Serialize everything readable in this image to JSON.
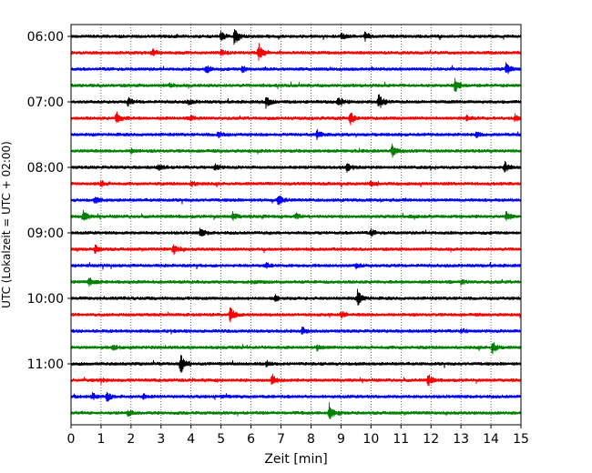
{
  "chart_data": {
    "type": "line",
    "subtype": "helicorder",
    "xlabel": "Zeit  [min]",
    "ylabel": "UTC (Lokalzeit = UTC + 02:00)",
    "xlim": [
      0,
      15
    ],
    "x_ticks": [
      "0",
      "1",
      "2",
      "3",
      "4",
      "5",
      "6",
      "7",
      "8",
      "9",
      "10",
      "11",
      "12",
      "13",
      "14",
      "15"
    ],
    "y_tick_labels": [
      "06:00",
      "07:00",
      "08:00",
      "09:00",
      "10:00",
      "11:00"
    ],
    "grid": "vertical-dotted",
    "trace_colors": [
      "#000000",
      "#ff0000",
      "#0000ff",
      "#008000"
    ],
    "rows": [
      {
        "time": "06:00",
        "color": "#000000",
        "events": [
          {
            "t": 5.0,
            "a": 0.5
          },
          {
            "t": 5.45,
            "a": 0.9
          },
          {
            "t": 9.0,
            "a": 0.35
          },
          {
            "t": 9.8,
            "a": 0.4
          }
        ]
      },
      {
        "time": "06:15",
        "color": "#ff0000",
        "events": [
          {
            "t": 2.7,
            "a": 0.35
          },
          {
            "t": 6.25,
            "a": 1.0
          },
          {
            "t": 5.0,
            "a": 0.3
          }
        ]
      },
      {
        "time": "06:30",
        "color": "#0000ff",
        "events": [
          {
            "t": 4.5,
            "a": 0.45
          },
          {
            "t": 5.7,
            "a": 0.3
          },
          {
            "t": 14.5,
            "a": 0.6
          }
        ]
      },
      {
        "time": "06:45",
        "color": "#008000",
        "events": [
          {
            "t": 12.8,
            "a": 0.7
          },
          {
            "t": 3.3,
            "a": 0.2
          }
        ]
      },
      {
        "time": "07:00",
        "color": "#000000",
        "events": [
          {
            "t": 1.9,
            "a": 0.4
          },
          {
            "t": 6.5,
            "a": 0.6
          },
          {
            "t": 8.9,
            "a": 0.6
          },
          {
            "t": 10.25,
            "a": 0.8
          },
          {
            "t": 3.9,
            "a": 0.3
          }
        ]
      },
      {
        "time": "07:15",
        "color": "#ff0000",
        "events": [
          {
            "t": 1.5,
            "a": 0.75
          },
          {
            "t": 9.3,
            "a": 0.65
          },
          {
            "t": 4.0,
            "a": 0.3
          },
          {
            "t": 13.2,
            "a": 0.3
          },
          {
            "t": 14.8,
            "a": 0.35
          }
        ]
      },
      {
        "time": "07:30",
        "color": "#0000ff",
        "events": [
          {
            "t": 4.9,
            "a": 0.3
          },
          {
            "t": 8.2,
            "a": 0.45
          },
          {
            "t": 13.5,
            "a": 0.3
          }
        ]
      },
      {
        "time": "07:45",
        "color": "#008000",
        "events": [
          {
            "t": 10.7,
            "a": 0.7
          },
          {
            "t": 2.0,
            "a": 0.2
          }
        ]
      },
      {
        "time": "08:00",
        "color": "#000000",
        "events": [
          {
            "t": 2.9,
            "a": 0.3
          },
          {
            "t": 4.8,
            "a": 0.35
          },
          {
            "t": 9.2,
            "a": 0.45
          },
          {
            "t": 14.45,
            "a": 0.55
          }
        ]
      },
      {
        "time": "08:15",
        "color": "#ff0000",
        "events": [
          {
            "t": 1.0,
            "a": 0.3
          },
          {
            "t": 4.0,
            "a": 0.3
          },
          {
            "t": 10.0,
            "a": 0.25
          }
        ]
      },
      {
        "time": "08:30",
        "color": "#0000ff",
        "events": [
          {
            "t": 6.9,
            "a": 0.5
          },
          {
            "t": 0.8,
            "a": 0.3
          }
        ]
      },
      {
        "time": "08:45",
        "color": "#008000",
        "events": [
          {
            "t": 0.4,
            "a": 0.55
          },
          {
            "t": 5.4,
            "a": 0.45
          },
          {
            "t": 14.5,
            "a": 0.5
          },
          {
            "t": 7.5,
            "a": 0.25
          }
        ]
      },
      {
        "time": "09:00",
        "color": "#000000",
        "events": [
          {
            "t": 4.3,
            "a": 0.45
          },
          {
            "t": 10.0,
            "a": 0.3
          }
        ]
      },
      {
        "time": "09:15",
        "color": "#ff0000",
        "events": [
          {
            "t": 0.8,
            "a": 0.4
          },
          {
            "t": 3.4,
            "a": 0.55
          }
        ]
      },
      {
        "time": "09:30",
        "color": "#0000ff",
        "events": [
          {
            "t": 6.5,
            "a": 0.25
          },
          {
            "t": 9.5,
            "a": 0.25
          }
        ]
      },
      {
        "time": "09:45",
        "color": "#008000",
        "events": [
          {
            "t": 0.6,
            "a": 0.5
          },
          {
            "t": 6.0,
            "a": 0.2
          },
          {
            "t": 13.0,
            "a": 0.25
          }
        ]
      },
      {
        "time": "10:00",
        "color": "#000000",
        "events": [
          {
            "t": 9.55,
            "a": 0.95
          },
          {
            "t": 6.8,
            "a": 0.3
          }
        ]
      },
      {
        "time": "10:15",
        "color": "#ff0000",
        "events": [
          {
            "t": 5.3,
            "a": 0.75
          },
          {
            "t": 9.0,
            "a": 0.3
          }
        ]
      },
      {
        "time": "10:30",
        "color": "#0000ff",
        "events": [
          {
            "t": 7.7,
            "a": 0.35
          },
          {
            "t": 13.0,
            "a": 0.25
          }
        ]
      },
      {
        "time": "10:45",
        "color": "#008000",
        "events": [
          {
            "t": 14.05,
            "a": 0.65
          },
          {
            "t": 1.4,
            "a": 0.25
          },
          {
            "t": 8.2,
            "a": 0.25
          }
        ]
      },
      {
        "time": "11:00",
        "color": "#000000",
        "events": [
          {
            "t": 3.65,
            "a": 1.0
          },
          {
            "t": 6.5,
            "a": 0.3
          }
        ]
      },
      {
        "time": "11:15",
        "color": "#ff0000",
        "events": [
          {
            "t": 6.7,
            "a": 0.6
          },
          {
            "t": 11.9,
            "a": 0.55
          },
          {
            "t": 1.0,
            "a": 0.25
          }
        ]
      },
      {
        "time": "11:30",
        "color": "#0000ff",
        "events": [
          {
            "t": 1.2,
            "a": 0.45
          },
          {
            "t": 0.7,
            "a": 0.3
          },
          {
            "t": 2.4,
            "a": 0.25
          }
        ]
      },
      {
        "time": "11:45",
        "color": "#008000",
        "events": [
          {
            "t": 8.6,
            "a": 1.0
          },
          {
            "t": 1.9,
            "a": 0.3
          }
        ]
      }
    ]
  }
}
